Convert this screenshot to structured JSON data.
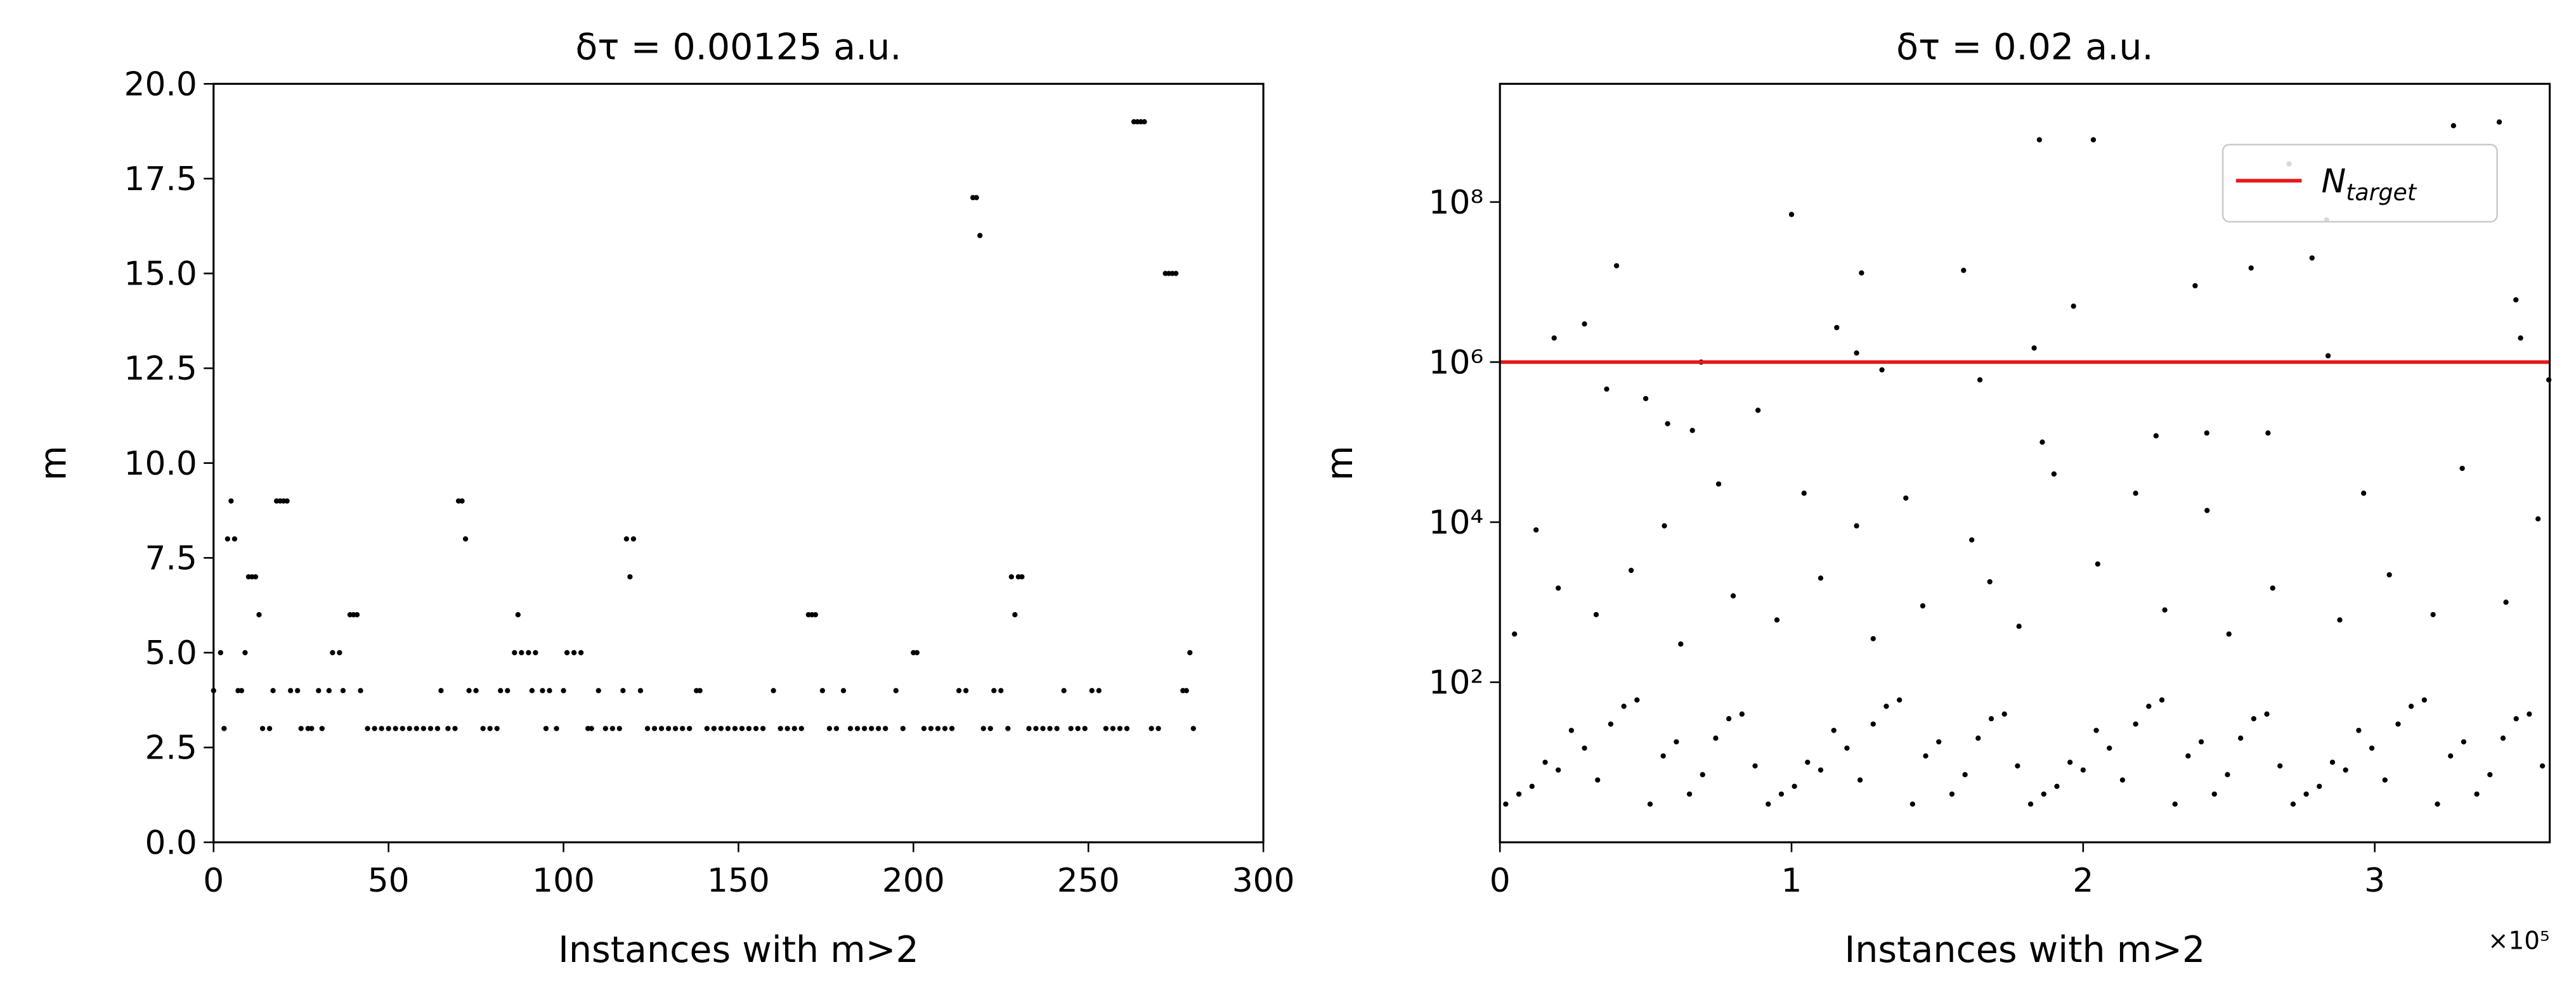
{
  "chart_data": [
    {
      "type": "scatter",
      "title": "δτ = 0.00125 a.u.",
      "x_label": "Instances with m>2",
      "y_label": "m",
      "color": "#000000",
      "xlim": [
        0,
        300
      ],
      "xticks": [
        0,
        50,
        100,
        150,
        200,
        250,
        300
      ],
      "ylim": [
        0,
        20
      ],
      "yticks": [
        {
          "value": 0,
          "label": "0.0"
        },
        2.5,
        {
          "value": 5,
          "label": "5.0"
        },
        7.5,
        {
          "value": 10,
          "label": "10.0"
        },
        12.5,
        {
          "value": 15,
          "label": "15.0"
        },
        17.5,
        {
          "value": 20,
          "label": "20.0"
        }
      ],
      "yscale": "linear",
      "x": [
        0,
        2,
        3,
        4,
        5,
        6,
        7,
        8,
        9,
        10,
        11,
        12,
        13,
        14,
        16,
        17,
        18,
        19,
        20,
        21,
        22,
        24,
        25,
        27,
        28,
        30,
        31,
        33,
        34,
        36,
        37,
        39,
        40,
        41,
        42,
        44,
        46,
        48,
        50,
        52,
        54,
        56,
        58,
        60,
        62,
        64,
        65,
        67,
        69,
        70,
        71,
        72,
        73,
        75,
        77,
        79,
        81,
        82,
        84,
        86,
        87,
        88,
        90,
        91,
        92,
        94,
        95,
        96,
        98,
        100,
        101,
        103,
        105,
        107,
        108,
        110,
        112,
        114,
        116,
        117,
        118,
        119,
        120,
        122,
        124,
        126,
        128,
        130,
        132,
        134,
        136,
        138,
        139,
        141,
        143,
        145,
        147,
        149,
        151,
        153,
        155,
        157,
        160,
        162,
        164,
        166,
        168,
        170,
        171,
        172,
        174,
        176,
        178,
        180,
        182,
        184,
        186,
        188,
        190,
        192,
        195,
        197,
        200,
        201,
        203,
        205,
        207,
        209,
        211,
        213,
        215,
        217,
        218,
        219,
        220,
        222,
        223,
        225,
        227,
        228,
        229,
        230,
        231,
        233,
        235,
        237,
        239,
        241,
        243,
        245,
        247,
        249,
        251,
        253,
        255,
        257,
        259,
        261,
        263,
        264,
        265,
        266,
        268,
        270,
        272,
        273,
        274,
        275,
        277,
        278,
        279,
        280
      ],
      "y": [
        4,
        5,
        3,
        8,
        9,
        8,
        4,
        4,
        5,
        7,
        7,
        7,
        6,
        3,
        3,
        4,
        9,
        9,
        9,
        9,
        4,
        4,
        3,
        3,
        3,
        4,
        3,
        4,
        5,
        5,
        4,
        6,
        6,
        6,
        4,
        3,
        3,
        3,
        3,
        3,
        3,
        3,
        3,
        3,
        3,
        3,
        4,
        3,
        3,
        9,
        9,
        8,
        4,
        4,
        3,
        3,
        3,
        4,
        4,
        5,
        6,
        5,
        5,
        4,
        5,
        4,
        3,
        4,
        3,
        4,
        5,
        5,
        5,
        3,
        3,
        4,
        3,
        3,
        3,
        4,
        8,
        7,
        8,
        4,
        3,
        3,
        3,
        3,
        3,
        3,
        3,
        4,
        4,
        3,
        3,
        3,
        3,
        3,
        3,
        3,
        3,
        3,
        4,
        3,
        3,
        3,
        3,
        6,
        6,
        6,
        4,
        3,
        3,
        4,
        3,
        3,
        3,
        3,
        3,
        3,
        4,
        3,
        5,
        5,
        3,
        3,
        3,
        3,
        3,
        4,
        4,
        17,
        17,
        16,
        3,
        3,
        4,
        4,
        3,
        7,
        6,
        7,
        7,
        3,
        3,
        3,
        3,
        3,
        4,
        3,
        3,
        3,
        4,
        4,
        3,
        3,
        3,
        3,
        19,
        19,
        19,
        19,
        3,
        3,
        15,
        15,
        15,
        15,
        4,
        4,
        5,
        3
      ]
    },
    {
      "type": "scatter",
      "title": "δτ = 0.02 a.u.",
      "x_label": "Instances with m>2",
      "y_label": "m",
      "color": "#000000",
      "xlim": [
        0,
        360000
      ],
      "xticks": [
        0,
        {
          "value": 100000,
          "label": "1"
        },
        {
          "value": 200000,
          "label": "2"
        },
        {
          "value": 300000,
          "label": "3"
        }
      ],
      "x_offset_label": "×10⁵",
      "ylim": [
        1,
        3000000000
      ],
      "yticks": [
        {
          "value": 100,
          "label": "10²"
        },
        {
          "value": 10000,
          "label": "10⁴"
        },
        {
          "value": 1000000,
          "label": "10⁶"
        },
        {
          "value": 100000000,
          "label": "10⁸"
        }
      ],
      "yscale": "log",
      "hline": {
        "value": 1000000,
        "color": "#e41a1c",
        "label_main": "N",
        "label_sub": "target"
      },
      "legend": "upper right",
      "x": [
        18600,
        29000,
        36600,
        40000,
        50000,
        57500,
        66000,
        69000,
        100000,
        115500,
        122300,
        124000,
        131000,
        159000,
        164600,
        183200,
        185000,
        186000,
        196700,
        203500,
        225000,
        238400,
        242400,
        257600,
        270600,
        278500,
        283500,
        284000,
        327000,
        342700,
        348400,
        350000,
        359700,
        12400,
        56400,
        75000,
        88500,
        104300,
        122300,
        139200,
        161800,
        190000,
        218000,
        242500,
        263400,
        296200,
        330000,
        356000,
        5000,
        20000,
        33000,
        45000,
        62000,
        80000,
        95000,
        110000,
        128000,
        145000,
        168000,
        178000,
        205000,
        228000,
        250000,
        265000,
        288000,
        305000,
        320000,
        345000,
        2000,
        11000,
        20000,
        29000,
        38000,
        47000,
        56000,
        65000,
        74000,
        83000,
        92000,
        101000,
        110000,
        119000,
        128000,
        137000,
        146000,
        155000,
        164000,
        173000,
        182000,
        191000,
        200000,
        209000,
        218000,
        227000,
        236000,
        245000,
        254000,
        263000,
        272000,
        281000,
        290000,
        299000,
        308000,
        317000,
        326000,
        335000,
        344000,
        353000,
        6500,
        15500,
        24500,
        33500,
        42500,
        51500,
        60500,
        69500,
        78500,
        87500,
        96500,
        105500,
        114500,
        123500,
        132500,
        141500,
        150500,
        159500,
        168500,
        177500,
        186500,
        195500,
        204500,
        213500,
        222500,
        231500,
        240500,
        249500,
        258500,
        267500,
        276500,
        285500,
        294500,
        303500,
        312500,
        321500,
        330500,
        339500,
        348500,
        357500
      ],
      "y": [
        2000000,
        3000000,
        460000,
        16000000,
        350000,
        170000,
        140000,
        1000000,
        70000000,
        2700000,
        1300000,
        13000000,
        800000,
        14000000,
        600000,
        1500000,
        600000000,
        100000,
        5000000,
        600000000,
        120000,
        9000000,
        130000,
        15000000,
        300000000,
        20000000,
        60000000,
        1200000,
        900000000,
        1000000000,
        6000000,
        2000000,
        600000,
        8000,
        9000,
        30000,
        250000,
        23000,
        9000,
        20000,
        6000,
        40000,
        23000,
        14000,
        130000,
        23000,
        47000,
        11000,
        400,
        1500,
        700,
        2500,
        300,
        1200,
        600,
        2000,
        350,
        900,
        1800,
        500,
        3000,
        800,
        400,
        1500,
        600,
        2200,
        700,
        1000,
        3,
        5,
        8,
        15,
        30,
        60,
        12,
        4,
        20,
        40,
        3,
        5,
        8,
        15,
        30,
        60,
        12,
        4,
        20,
        40,
        3,
        5,
        8,
        15,
        30,
        60,
        12,
        4,
        20,
        40,
        3,
        5,
        8,
        15,
        30,
        60,
        12,
        4,
        20,
        40,
        4,
        10,
        25,
        6,
        50,
        3,
        18,
        7,
        35,
        9,
        4,
        10,
        25,
        6,
        50,
        3,
        18,
        7,
        35,
        9,
        4,
        10,
        25,
        6,
        50,
        3,
        18,
        7,
        35,
        9,
        4,
        10,
        25,
        6,
        50,
        3,
        18,
        7,
        35,
        9
      ]
    }
  ]
}
